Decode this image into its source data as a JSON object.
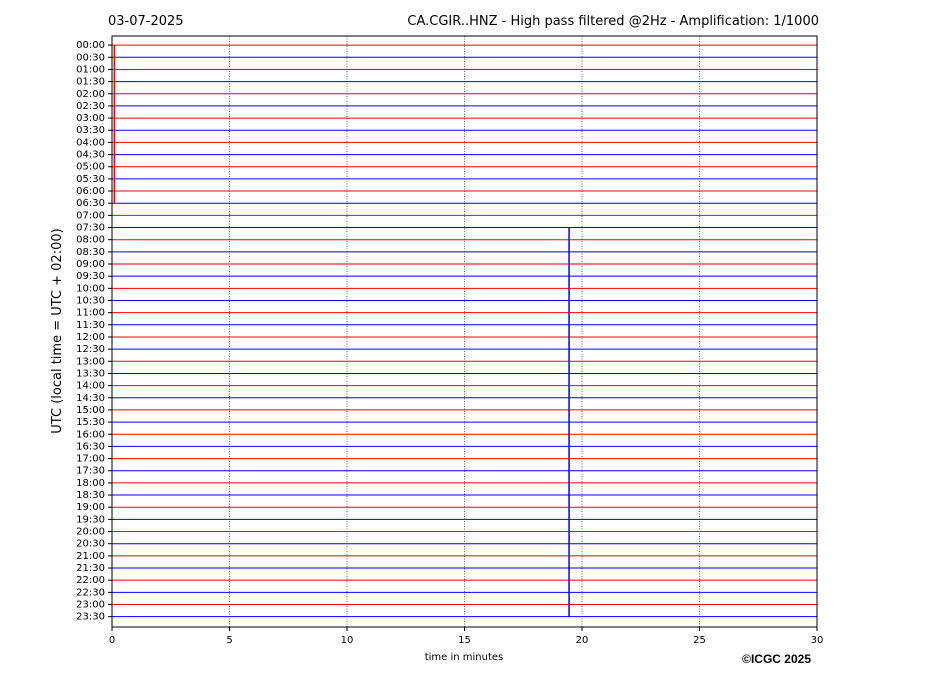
{
  "chart_data": {
    "type": "helicorder",
    "date": "03-07-2025",
    "title": "CA.CGIR..HNZ - High pass filtered @2Hz - Amplification: 1/1000",
    "ylabel": "UTC (local time = UTC + 02:00)",
    "xlabel": "time in minutes",
    "copyright": "©ICGC 2025",
    "categories": [
      "00:00",
      "00:30",
      "01:00",
      "01:30",
      "02:00",
      "02:30",
      "03:00",
      "03:30",
      "04:00",
      "04:30",
      "05:00",
      "05:30",
      "06:00",
      "06:30",
      "07:00",
      "07:30",
      "08:00",
      "08:30",
      "09:00",
      "09:30",
      "10:00",
      "10:30",
      "11:00",
      "11:30",
      "12:00",
      "12:30",
      "13:00",
      "13:30",
      "14:00",
      "14:30",
      "15:00",
      "15:30",
      "16:00",
      "16:30",
      "17:00",
      "17:30",
      "18:00",
      "18:30",
      "19:00",
      "19:30",
      "20:00",
      "20:30",
      "21:00",
      "21:30",
      "22:00",
      "22:30",
      "23:00",
      "23:30"
    ],
    "colors": [
      "#ff0000",
      "#0000ff"
    ],
    "xlim": [
      0,
      30
    ],
    "xticks": [
      0,
      5,
      10,
      15,
      20,
      25,
      30
    ],
    "grid": true,
    "spikes": [
      {
        "x": 19.45,
        "from": "23:30",
        "to": "07:30",
        "color": "#0000ff"
      },
      {
        "x": 0.1,
        "from": "00:00",
        "to": "06:30",
        "color": "#ff0000"
      }
    ]
  }
}
